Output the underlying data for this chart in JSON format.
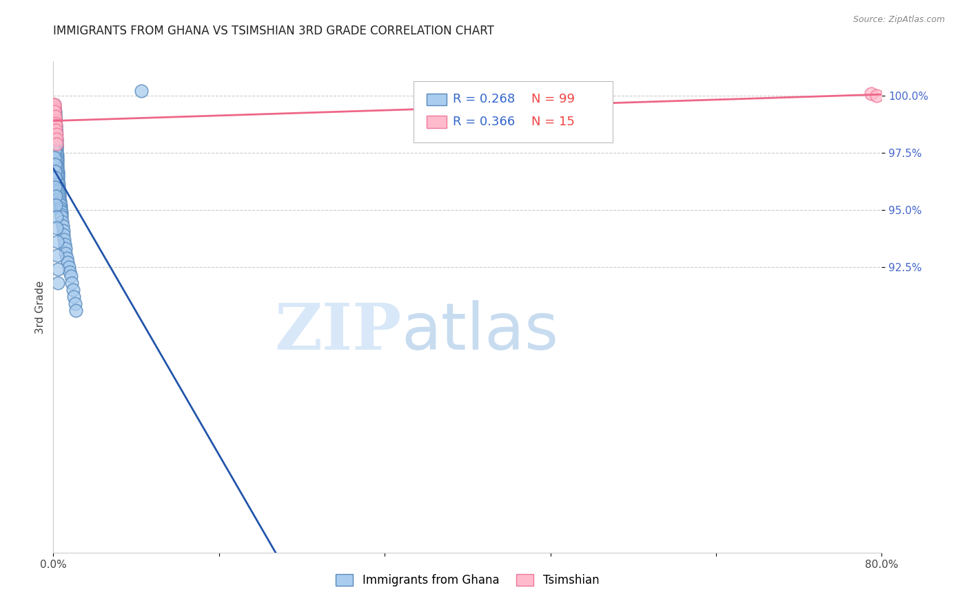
{
  "title": "IMMIGRANTS FROM GHANA VS TSIMSHIAN 3RD GRADE CORRELATION CHART",
  "source": "Source: ZipAtlas.com",
  "ylabel": "3rd Grade",
  "xlim": [
    0.0,
    80.0
  ],
  "ylim": [
    80.0,
    101.5
  ],
  "blue_R": 0.268,
  "blue_N": 99,
  "pink_R": 0.366,
  "pink_N": 15,
  "blue_face_color": "#AACCEE",
  "blue_edge_color": "#5588BB",
  "pink_face_color": "#FFBBCC",
  "pink_edge_color": "#EE7799",
  "blue_line_color": "#2255AA",
  "pink_line_color": "#EE6688",
  "ytick_positions": [
    92.5,
    95.0,
    97.5,
    100.0
  ],
  "ytick_labels": [
    "92.5%",
    "95.0%",
    "97.5%",
    "100.0%"
  ],
  "xtick_positions": [
    0,
    16,
    32,
    48,
    64,
    80
  ],
  "xtick_labels": [
    "0.0%",
    "",
    "",
    "",
    "",
    "80.0%"
  ],
  "blue_x": [
    0.05,
    0.08,
    0.1,
    0.1,
    0.12,
    0.12,
    0.13,
    0.14,
    0.15,
    0.15,
    0.16,
    0.17,
    0.18,
    0.18,
    0.19,
    0.2,
    0.2,
    0.21,
    0.22,
    0.22,
    0.23,
    0.24,
    0.25,
    0.25,
    0.26,
    0.27,
    0.28,
    0.29,
    0.3,
    0.3,
    0.31,
    0.32,
    0.33,
    0.34,
    0.35,
    0.36,
    0.37,
    0.38,
    0.39,
    0.4,
    0.41,
    0.42,
    0.43,
    0.44,
    0.45,
    0.46,
    0.47,
    0.48,
    0.5,
    0.52,
    0.54,
    0.56,
    0.58,
    0.6,
    0.62,
    0.65,
    0.68,
    0.7,
    0.72,
    0.75,
    0.78,
    0.8,
    0.85,
    0.9,
    0.95,
    1.0,
    1.05,
    1.1,
    1.15,
    1.2,
    1.3,
    1.4,
    1.5,
    1.6,
    1.7,
    1.8,
    1.9,
    2.0,
    2.1,
    2.2,
    0.05,
    0.06,
    0.07,
    0.09,
    0.11,
    0.13,
    0.15,
    0.17,
    0.19,
    0.21,
    0.23,
    0.25,
    0.28,
    0.31,
    0.35,
    0.38,
    0.42,
    0.46,
    8.5
  ],
  "blue_y": [
    99.5,
    99.4,
    99.6,
    99.3,
    99.5,
    99.2,
    99.4,
    99.1,
    99.3,
    99.0,
    99.2,
    98.9,
    99.1,
    98.8,
    99.0,
    98.9,
    98.7,
    98.8,
    98.7,
    98.5,
    98.6,
    98.4,
    98.5,
    98.3,
    98.4,
    98.2,
    98.1,
    98.0,
    97.9,
    97.8,
    97.8,
    97.7,
    97.6,
    97.5,
    97.4,
    97.3,
    97.2,
    97.1,
    97.0,
    96.9,
    96.8,
    96.7,
    96.6,
    96.5,
    96.4,
    96.3,
    96.2,
    96.1,
    96.0,
    95.9,
    95.8,
    95.7,
    95.6,
    95.5,
    95.4,
    95.3,
    95.2,
    95.1,
    95.0,
    94.9,
    94.8,
    94.7,
    94.5,
    94.3,
    94.1,
    93.9,
    93.7,
    93.5,
    93.3,
    93.1,
    92.9,
    92.7,
    92.5,
    92.3,
    92.1,
    91.8,
    91.5,
    91.2,
    90.9,
    90.6,
    98.5,
    98.3,
    98.1,
    97.9,
    97.6,
    97.3,
    97.0,
    96.7,
    96.4,
    96.0,
    95.6,
    95.2,
    94.7,
    94.2,
    93.6,
    93.0,
    92.4,
    91.8,
    100.2
  ],
  "pink_x": [
    0.05,
    0.08,
    0.1,
    0.12,
    0.14,
    0.16,
    0.18,
    0.2,
    0.22,
    0.25,
    0.28,
    0.3,
    0.33,
    79.0,
    79.5
  ],
  "pink_y": [
    99.6,
    99.5,
    99.4,
    99.6,
    99.3,
    98.9,
    99.1,
    98.8,
    98.7,
    98.5,
    98.3,
    98.1,
    97.9,
    100.1,
    100.0
  ]
}
